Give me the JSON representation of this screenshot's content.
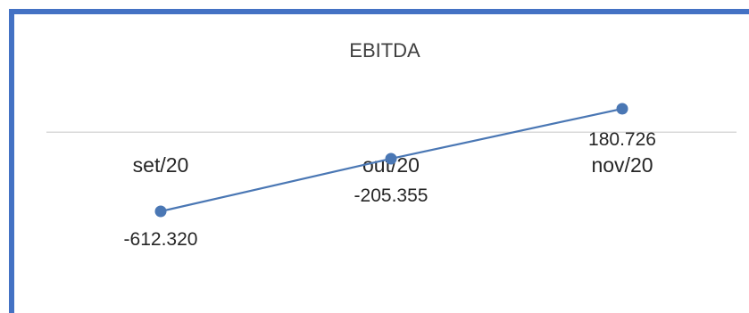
{
  "chart_data": {
    "type": "line",
    "title": "EBITDA",
    "categories": [
      "set/20",
      "out/20",
      "nov/20"
    ],
    "values": [
      -612.32,
      -205.355,
      180.726
    ],
    "value_labels": [
      "-612.320",
      "-205.355",
      "180.726"
    ],
    "xlabel": "",
    "ylabel": "",
    "legend": "none",
    "grid": false,
    "colors": {
      "series": "#4a77b4",
      "axis": "#d9d9d9",
      "border": "#4472c4"
    }
  }
}
